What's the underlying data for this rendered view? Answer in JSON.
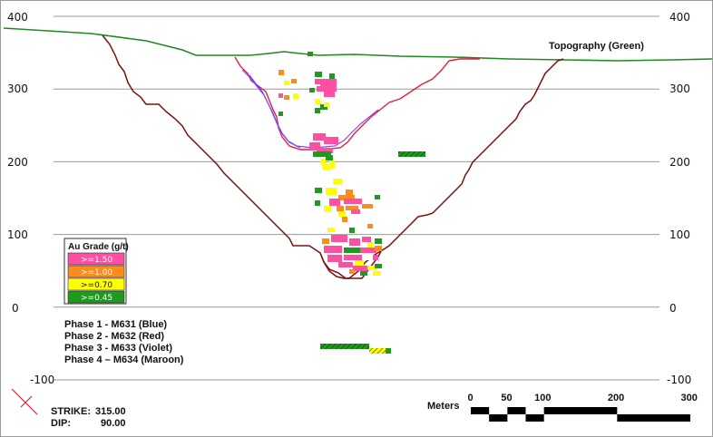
{
  "chart_data": {
    "type": "section",
    "y_ticks_left": [
      "400",
      "300",
      "200",
      "100",
      "0",
      "-100"
    ],
    "y_ticks_right": [
      "400",
      "300",
      "200",
      "100",
      "0",
      "-100"
    ],
    "ylim": [
      -100,
      400
    ],
    "grid": "horizontal",
    "topography_label": "Topography (Green)",
    "legend": {
      "title": "Au Grade (g/t)",
      "items": [
        {
          "label": ">=1.50",
          "color": "#ff4fa3",
          "text_color": "#ffffff"
        },
        {
          "label": ">=1.00",
          "color": "#ff8c1a",
          "text_color": "#ffffff"
        },
        {
          "label": ">=0.70",
          "color": "#ffff00",
          "text_color": "#111111"
        },
        {
          "label": ">=0.45",
          "color": "#1f9a1f",
          "text_color": "#ffffff"
        }
      ]
    },
    "phases": [
      {
        "label": "Phase 1 - M631 (Blue)",
        "color": "#3050ff"
      },
      {
        "label": "Phase 2 - M632 (Red)",
        "color": "#e0203a"
      },
      {
        "label": "Phase 3 - M633 (Violet)",
        "color": "#9a40ff"
      },
      {
        "label": "Phase 4 – M634 (Maroon)",
        "color": "#7a1010"
      }
    ],
    "strike_label": "STRIKE:",
    "strike_value": "315.00",
    "dip_label": "DIP:",
    "dip_value": "90.00",
    "scale": {
      "title": "Meters",
      "ticks": [
        "0",
        "50",
        "100",
        "200",
        "300"
      ],
      "values": [
        0,
        50,
        100,
        200,
        300
      ]
    }
  },
  "colors": {
    "topography": "#1f8a1f",
    "grid": "#9a9a9a",
    "maroon": "#7a1010"
  }
}
